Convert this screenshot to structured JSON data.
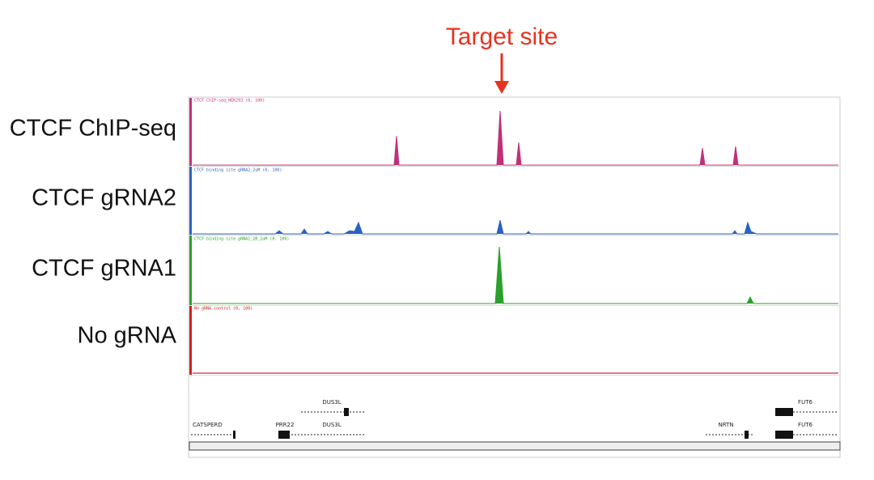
{
  "header": {
    "title": "Target site"
  },
  "tracks": [
    {
      "label": "CTCF ChIP-seq",
      "caption": "CTCF ChIP-seq_HEK293 (0, 100)"
    },
    {
      "label": "CTCF gRNA2",
      "caption": "CTCF binding site gRNA2_2uM (0, 100)"
    },
    {
      "label": "CTCF gRNA1",
      "caption": "CTCF binding site gRNA1_2B_2uM (0, 100)"
    },
    {
      "label": "No gRNA",
      "caption": "No gRNA control (0, 100)"
    }
  ],
  "genes": [
    "DUS3L",
    "CATSPERD",
    "PRR22",
    "DUS3L",
    "NRTN",
    "FUT6",
    "FUT6"
  ]
}
